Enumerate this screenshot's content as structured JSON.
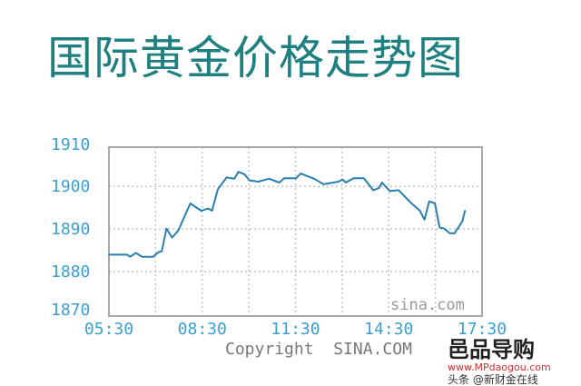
{
  "title": "国际黄金价格走势图",
  "chart_data": {
    "type": "line",
    "title": "国际黄金价格走势图",
    "xlabel": "",
    "ylabel": "",
    "xlim": [
      "05:30",
      "17:30"
    ],
    "ylim": [
      1870,
      1910
    ],
    "grid": true,
    "x_ticks": [
      "05:30",
      "08:30",
      "11:30",
      "14:30",
      "17:30"
    ],
    "y_ticks": [
      1910,
      1900,
      1890,
      1880,
      1870
    ],
    "line_color": "#2a7fae",
    "tick_color": "#3a9fd2",
    "watermark": "sina.com",
    "copyright": "Copyright  SINA.COM",
    "x": [
      "05:30",
      "06:05",
      "06:11",
      "06:22",
      "06:34",
      "06:55",
      "07:06",
      "07:12",
      "07:21",
      "07:32",
      "07:44",
      "08:07",
      "08:28",
      "08:42",
      "08:49",
      "09:00",
      "09:17",
      "09:32",
      "09:40",
      "09:52",
      "10:01",
      "10:18",
      "10:39",
      "10:59",
      "11:08",
      "11:31",
      "11:40",
      "12:06",
      "12:24",
      "12:53",
      "13:01",
      "13:07",
      "13:22",
      "13:42",
      "14:00",
      "14:11",
      "14:17",
      "14:32",
      "14:49",
      "15:13",
      "15:30",
      "15:39",
      "15:48",
      "15:59",
      "16:08",
      "16:17",
      "16:28",
      "16:37",
      "16:52",
      "16:57"
    ],
    "values": [
      1884.0,
      1884.0,
      1883.5,
      1884.4,
      1883.5,
      1883.5,
      1884.6,
      1884.8,
      1890.1,
      1888.0,
      1889.7,
      1896.0,
      1894.3,
      1894.8,
      1894.3,
      1899.3,
      1902.1,
      1901.8,
      1903.4,
      1902.8,
      1901.4,
      1901.1,
      1901.8,
      1900.9,
      1901.9,
      1901.9,
      1903.0,
      1901.8,
      1900.5,
      1901.1,
      1901.6,
      1900.9,
      1901.9,
      1901.9,
      1899.1,
      1899.6,
      1900.9,
      1898.9,
      1899.1,
      1896.1,
      1894.3,
      1892.2,
      1896.5,
      1896.0,
      1890.4,
      1890.1,
      1889.0,
      1889.0,
      1891.8,
      1894.3
    ]
  },
  "overlay": {
    "logo": "邑品导购",
    "url": "www.MPdaogou.com",
    "source": "头条 @新财金在线"
  }
}
